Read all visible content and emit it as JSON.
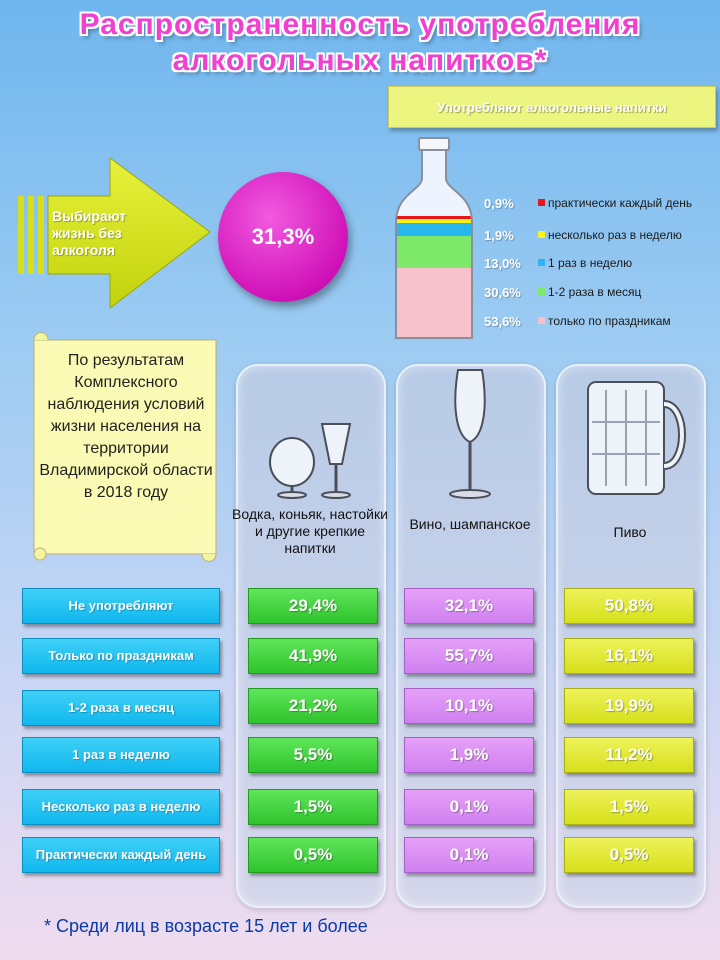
{
  "title_line1": "Распространенность употребления",
  "title_line2": "алкогольных напитков",
  "title_star": "*",
  "consumers_label": "Употребляют алкогольные напитки",
  "abstain": {
    "text": "Выбирают жизнь без алкоголя",
    "value": "31,3%"
  },
  "bottle_legend": [
    {
      "pct": "0,9%",
      "label": "практически каждый день",
      "color": "#e8141c"
    },
    {
      "pct": "1,9%",
      "label": "несколько раз в неделю",
      "color": "#f6f21a"
    },
    {
      "pct": "13,0%",
      "label": "1 раз в неделю",
      "color": "#29b6ee"
    },
    {
      "pct": "30,6%",
      "label": "1-2 раза в месяц",
      "color": "#7ee86a"
    },
    {
      "pct": "53,6%",
      "label": "только по праздникам",
      "color": "#f8c2cc"
    }
  ],
  "source_note": "По результатам Комплексного наблюдения условий жизни населения на территории Владимирской области в 2018 году",
  "columns": [
    {
      "label": "Водка, коньяк, настойки и другие крепкие напитки",
      "icon": "spirits-glasses-icon"
    },
    {
      "label": "Вино, шампанское",
      "icon": "wine-glass-icon"
    },
    {
      "label": "Пиво",
      "icon": "beer-mug-icon"
    }
  ],
  "rows": [
    {
      "label": "Не употребляют",
      "values": [
        "29,4%",
        "32,1%",
        "50,8%"
      ]
    },
    {
      "label": "Только по праздникам",
      "values": [
        "41,9%",
        "55,7%",
        "16,1%"
      ]
    },
    {
      "label": "1-2 раза в месяц",
      "values": [
        "21,2%",
        "10,1%",
        "19,9%"
      ]
    },
    {
      "label": "1 раз в неделю",
      "values": [
        "5,5%",
        "1,9%",
        "11,2%"
      ]
    },
    {
      "label": "Несколько раз в неделю",
      "values": [
        "1,5%",
        "0,1%",
        "1,5%"
      ]
    },
    {
      "label": "Практически каждый день",
      "values": [
        "0,5%",
        "0,1%",
        "0,5%"
      ]
    }
  ],
  "footnote": "* Среди лиц в возрасте 15 лет и более",
  "colors": {
    "green": "#3fd33b",
    "violet": "#d98af3",
    "yellow": "#e1e830",
    "cyan": "#18bdf0",
    "magenta": "#d916c0"
  }
}
